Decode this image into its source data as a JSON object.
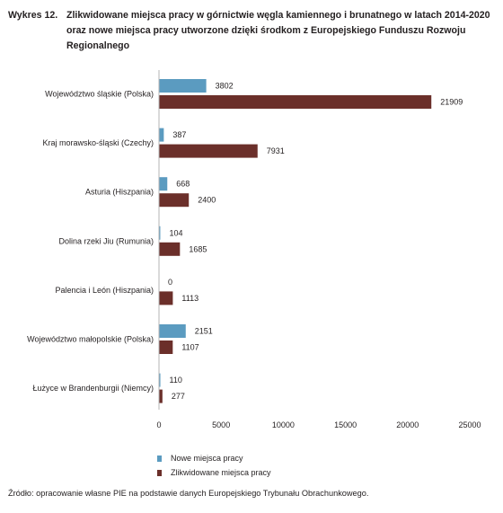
{
  "figure": {
    "label": "Wykres 12.",
    "title": "Zlikwidowane miejsca pracy w górnictwie węgla kamiennego i brunatnego w latach 2014-2020 oraz nowe miejsca pracy utworzone dzięki środkom z Europejskiego Funduszu Rozwoju Regionalnego",
    "source": "Źródło: opracowanie własne PIE na podstawie danych Europejskiego Trybunału Obrachunkowego."
  },
  "chart_data": {
    "type": "bar",
    "orientation": "horizontal",
    "categories": [
      "Województwo śląskie (Polska)",
      "Kraj morawsko-śląski (Czechy)",
      "Asturia (Hiszpania)",
      "Dolina rzeki Jiu (Rumunia)",
      "Palencia i León (Hiszpania)",
      "Województwo małopolskie (Polska)",
      "Łużyce w Brandenburgii (Niemcy)"
    ],
    "series": [
      {
        "name": "Nowe miejsca pracy",
        "color": "#5b9bc0",
        "values": [
          3802,
          387,
          668,
          104,
          0,
          2151,
          110
        ]
      },
      {
        "name": "Zlikwidowane miejsca pracy",
        "color": "#6b2f2a",
        "values": [
          21909,
          7931,
          2400,
          1685,
          1113,
          1107,
          277
        ]
      }
    ],
    "xlim": [
      0,
      25000
    ],
    "xticks": [
      "0",
      "5000",
      "10000",
      "15000",
      "20000",
      "25000"
    ],
    "xtick_values": [
      0,
      5000,
      10000,
      15000,
      20000,
      25000
    ],
    "legend": "bottom-left",
    "grid": false
  }
}
